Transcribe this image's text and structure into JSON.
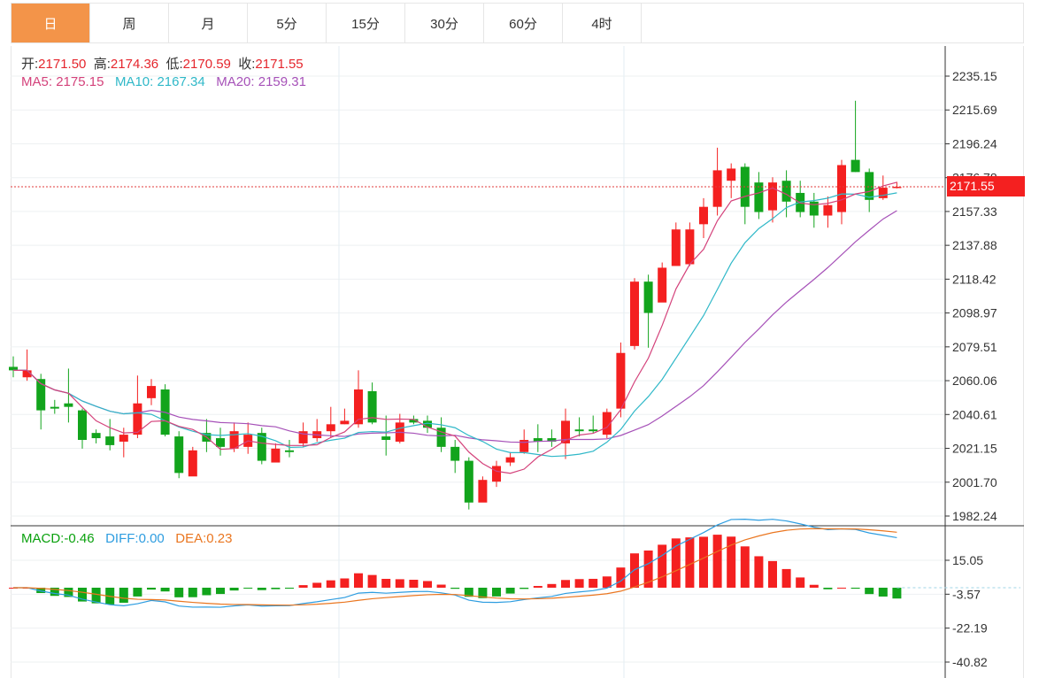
{
  "tabs": [
    {
      "label": "日",
      "active": true
    },
    {
      "label": "周"
    },
    {
      "label": "月"
    },
    {
      "label": "5分"
    },
    {
      "label": "15分"
    },
    {
      "label": "30分"
    },
    {
      "label": "60分"
    },
    {
      "label": "4时"
    }
  ],
  "info": {
    "open_label": "开:",
    "open": "2171.50",
    "high_label": "高:",
    "high": "2174.36",
    "low_label": "低:",
    "low": "2170.59",
    "close_label": "收:",
    "close": "2171.55",
    "ma5_label": "MA5:",
    "ma5": "2175.15",
    "ma10_label": "MA10:",
    "ma10": "2167.34",
    "ma20_label": "MA20:",
    "ma20": "2159.31"
  },
  "macd_info": {
    "macd_label": "MACD:",
    "macd": "-0.46",
    "diff_label": "DIFF:",
    "diff": "0.00",
    "dea_label": "DEA:",
    "dea": "0.23"
  },
  "last_price": "2171.55",
  "colors": {
    "up": "#f42020",
    "down": "#12a41c",
    "ma5": "#d4427b",
    "ma10": "#2fb8c8",
    "ma20": "#a651b8",
    "diff": "#2e9de0",
    "dea": "#ea7620",
    "active_tab": "#f39449"
  },
  "chart_data": {
    "type": "candlestick",
    "price_axis_ticks": [
      2235.15,
      2215.69,
      2196.24,
      2176.78,
      2157.33,
      2137.88,
      2118.42,
      2098.97,
      2079.51,
      2060.06,
      2040.61,
      2021.15,
      2001.7,
      1982.24
    ],
    "macd_axis_ticks": [
      15.05,
      -3.57,
      -22.19,
      -40.82
    ],
    "candles": [
      [
        2068,
        2066,
        2074,
        2062
      ],
      [
        2062,
        2066,
        2078,
        2060
      ],
      [
        2061,
        2043,
        2064,
        2032
      ],
      [
        2045,
        2044,
        2049,
        2041
      ],
      [
        2047,
        2045,
        2067,
        2036
      ],
      [
        2043,
        2026,
        2044,
        2021
      ],
      [
        2030,
        2027,
        2032,
        2024
      ],
      [
        2028,
        2023,
        2038,
        2020
      ],
      [
        2025,
        2029,
        2033,
        2016
      ],
      [
        2029,
        2047,
        2063,
        2027
      ],
      [
        2050,
        2057,
        2061,
        2046
      ],
      [
        2055,
        2029,
        2058,
        2028
      ],
      [
        2028,
        2007,
        2031,
        2004
      ],
      [
        2005,
        2020,
        2022,
        2007
      ],
      [
        2030,
        2025,
        2038,
        2019
      ],
      [
        2027,
        2022,
        2033,
        2017
      ],
      [
        2021,
        2031,
        2036,
        2019
      ],
      [
        2022,
        2029,
        2036,
        2018
      ],
      [
        2030,
        2014,
        2033,
        2012
      ],
      [
        2013,
        2021,
        2024,
        2015
      ],
      [
        2020,
        2019,
        2026,
        2016
      ],
      [
        2024,
        2031,
        2036,
        2022
      ],
      [
        2027,
        2031,
        2038,
        2025
      ],
      [
        2031,
        2035,
        2045,
        2027
      ],
      [
        2035,
        2037,
        2044,
        2035
      ],
      [
        2035,
        2055,
        2066,
        2033
      ],
      [
        2054,
        2036,
        2059,
        2035
      ],
      [
        2028,
        2026,
        2040,
        2017
      ],
      [
        2025,
        2036,
        2041,
        2024
      ],
      [
        2038,
        2036,
        2040,
        2035
      ],
      [
        2037,
        2033,
        2040,
        2030
      ],
      [
        2033,
        2022,
        2039,
        2019
      ],
      [
        2022,
        2014,
        2026,
        2007
      ],
      [
        2014,
        1990,
        2016,
        1986
      ],
      [
        1990,
        2003,
        2005,
        1992
      ],
      [
        2002,
        2011,
        2014,
        1999
      ],
      [
        2013,
        2016,
        2019,
        2011
      ],
      [
        2019,
        2026,
        2032,
        2018
      ],
      [
        2027,
        2025,
        2035,
        2019
      ],
      [
        2027,
        2025,
        2032,
        2022
      ],
      [
        2024,
        2037,
        2044,
        2015
      ],
      [
        2032,
        2031,
        2039,
        2028
      ],
      [
        2032,
        2031,
        2040,
        2030
      ],
      [
        2029,
        2042,
        2044,
        2027
      ],
      [
        2044,
        2076,
        2082,
        2039
      ],
      [
        2080,
        2117,
        2119,
        2078
      ],
      [
        2117,
        2099,
        2121,
        2079
      ],
      [
        2105,
        2125,
        2128,
        2118
      ],
      [
        2126,
        2147,
        2151,
        2129
      ],
      [
        2127,
        2147,
        2151,
        2126
      ],
      [
        2150,
        2160,
        2165,
        2142
      ],
      [
        2160,
        2181,
        2194,
        2155
      ],
      [
        2175,
        2182,
        2185,
        2165
      ],
      [
        2183,
        2160,
        2185,
        2150
      ],
      [
        2174,
        2157,
        2180,
        2153
      ],
      [
        2158,
        2174,
        2177,
        2151
      ],
      [
        2175,
        2163,
        2181,
        2154
      ],
      [
        2168,
        2157,
        2175,
        2154
      ],
      [
        2163,
        2155,
        2168,
        2148
      ],
      [
        2155,
        2161,
        2166,
        2148
      ],
      [
        2157,
        2184,
        2187,
        2150
      ],
      [
        2187,
        2180,
        2221,
        2180
      ],
      [
        2180,
        2164,
        2182,
        2157
      ],
      [
        2165,
        2171,
        2178,
        2164
      ],
      [
        2171.5,
        2171.55,
        2174.36,
        2170.59
      ]
    ]
  }
}
